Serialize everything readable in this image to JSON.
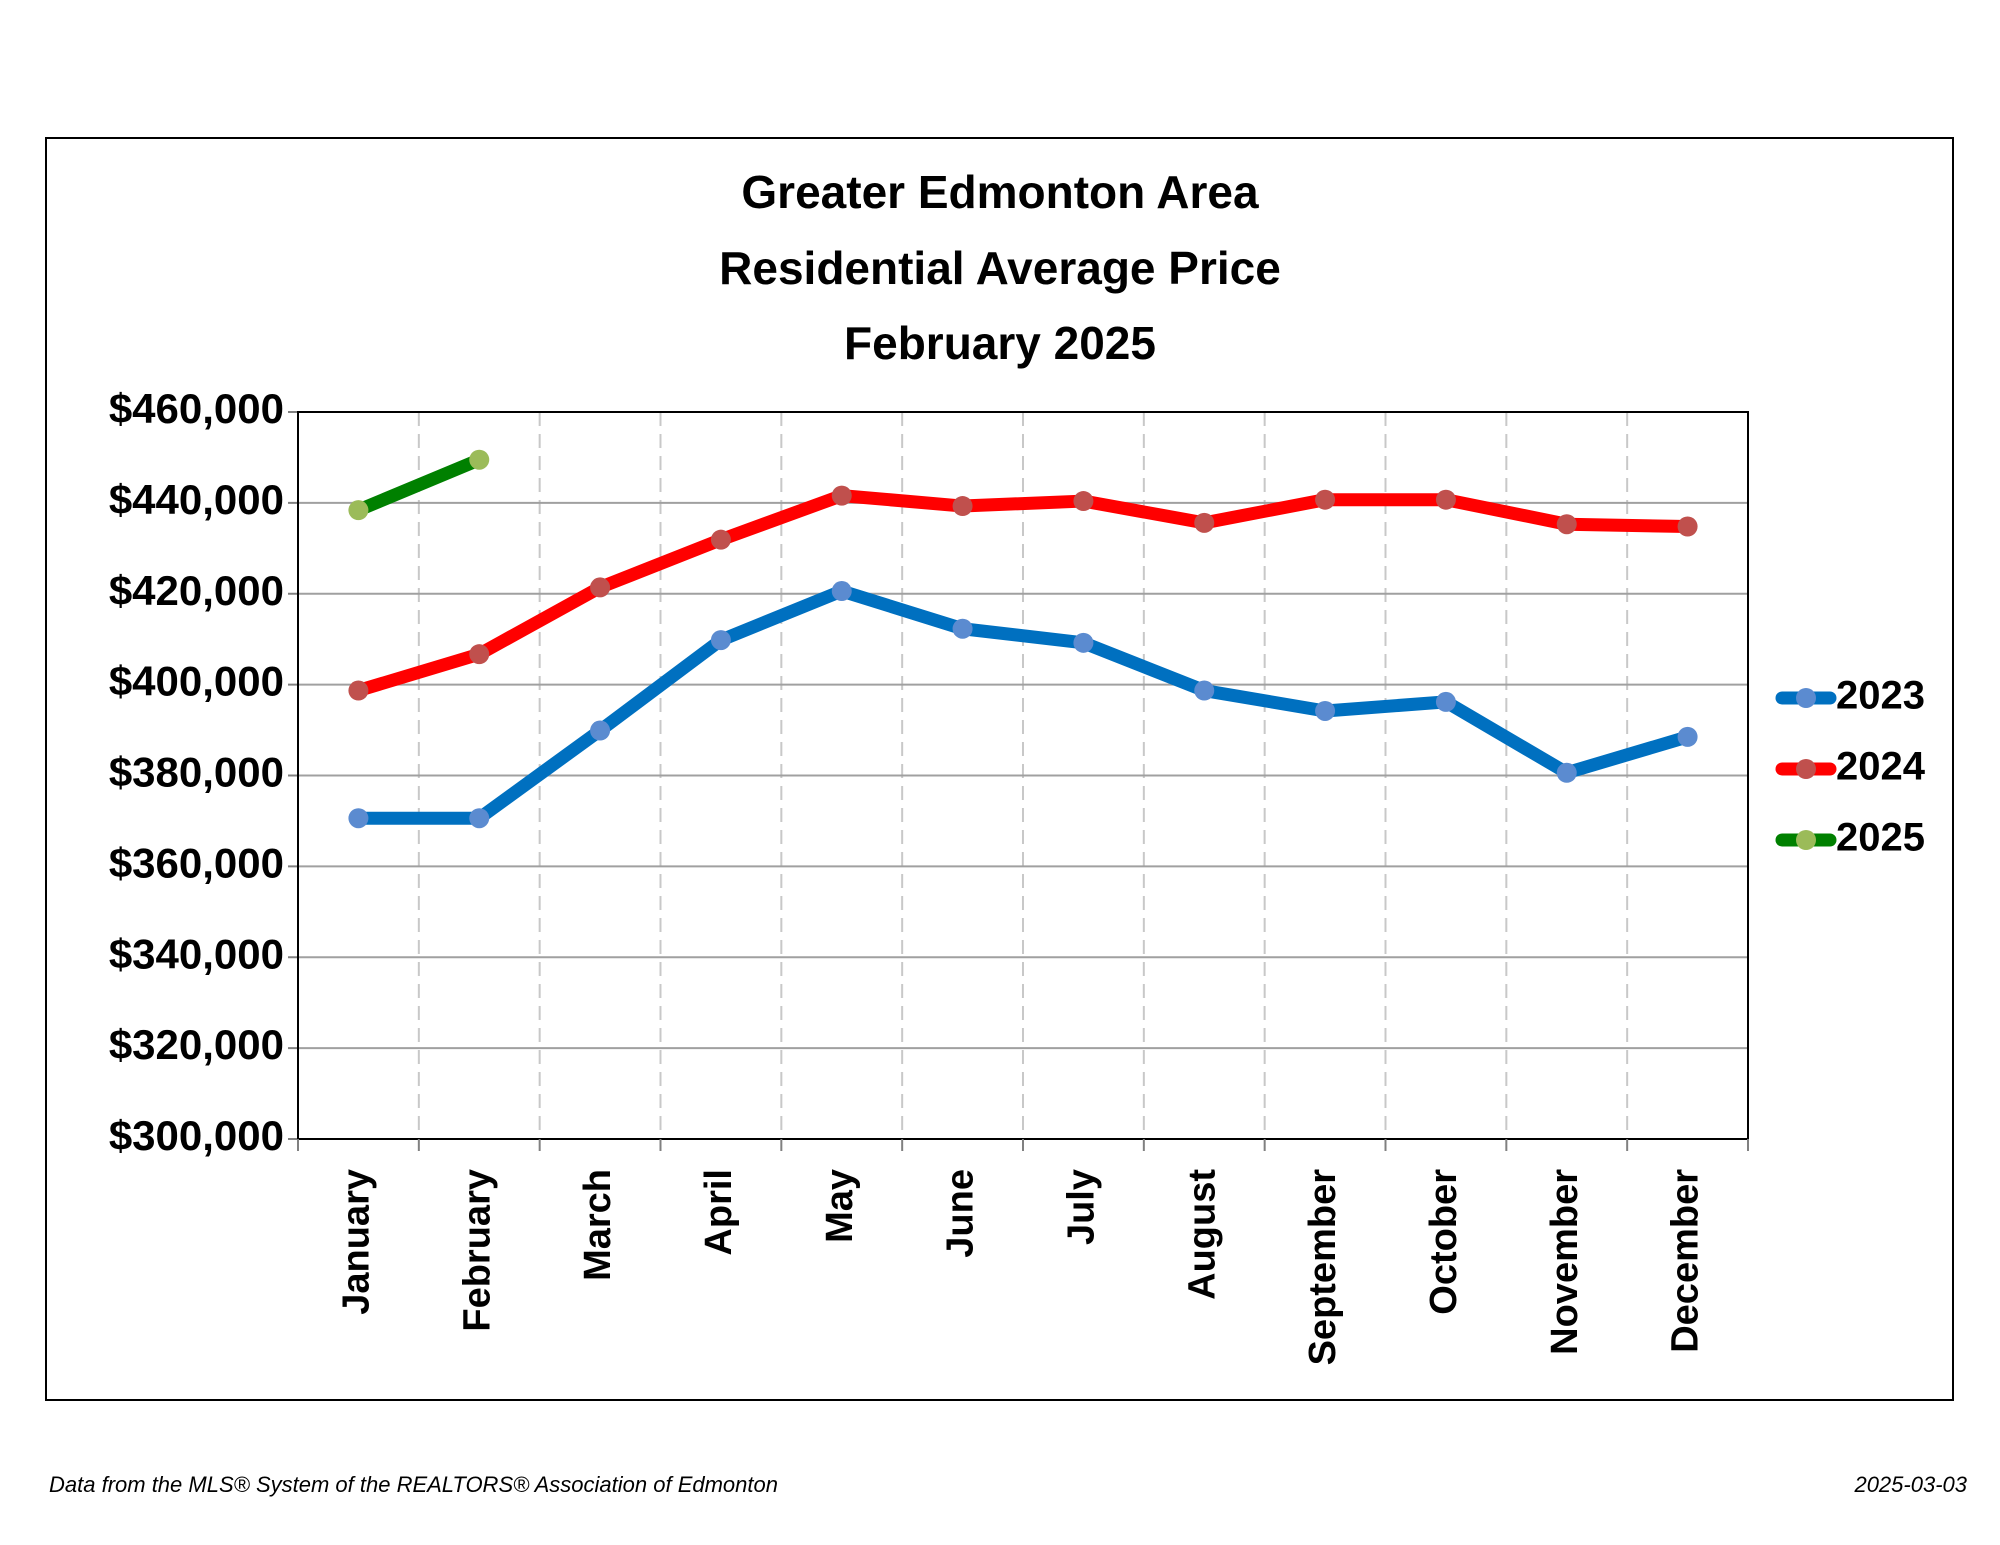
{
  "chart_data": {
    "type": "line",
    "title": [
      "Greater Edmonton Area",
      "Residential Average Price",
      "February 2025"
    ],
    "categories": [
      "January",
      "February",
      "March",
      "April",
      "May",
      "June",
      "July",
      "August",
      "September",
      "October",
      "November",
      "December"
    ],
    "series": [
      {
        "name": "2023",
        "color": "#0070c0",
        "marker_color": "#5b8bd0",
        "values": [
          370600,
          370600,
          389900,
          409800,
          420600,
          412300,
          409200,
          398700,
          394200,
          396200,
          380600,
          388500
        ]
      },
      {
        "name": "2024",
        "color": "#ff0000",
        "marker_color": "#c0504d",
        "values": [
          398700,
          406700,
          421400,
          431900,
          441600,
          439300,
          440400,
          435600,
          440700,
          440700,
          435300,
          434800
        ]
      },
      {
        "name": "2025",
        "color": "#008000",
        "marker_color": "#9bbb59",
        "values": [
          438400,
          449500,
          null,
          null,
          null,
          null,
          null,
          null,
          null,
          null,
          null,
          null
        ]
      }
    ],
    "ylim": [
      300000,
      460000
    ],
    "yticks": [
      {
        "value": 300000,
        "label": "$300,000"
      },
      {
        "value": 320000,
        "label": "$320,000"
      },
      {
        "value": 340000,
        "label": "$340,000"
      },
      {
        "value": 360000,
        "label": "$360,000"
      },
      {
        "value": 380000,
        "label": "$380,000"
      },
      {
        "value": 400000,
        "label": "$400,000"
      },
      {
        "value": 420000,
        "label": "$420,000"
      },
      {
        "value": 440000,
        "label": "$440,000"
      },
      {
        "value": 460000,
        "label": "$460,000"
      }
    ],
    "grid": true,
    "legend": "right"
  },
  "footer": {
    "source": "Data from the MLS® System of the REALTORS® Association of Edmonton",
    "date": "2025-03-03"
  }
}
